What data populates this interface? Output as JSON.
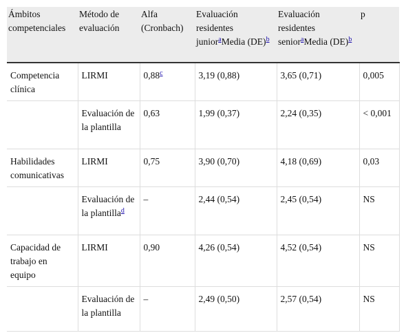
{
  "table": {
    "header": [
      "Ámbitos competenciales",
      "Método de evaluación",
      "Alfa (Cronbach)",
      {
        "parts": [
          {
            "text": "Evaluación residentes junior"
          },
          {
            "sup": "a"
          },
          {
            "text": "Media (DE)"
          },
          {
            "sup": "b"
          }
        ]
      },
      {
        "parts": [
          {
            "text": "Evaluación residentes senior"
          },
          {
            "sup": "a"
          },
          {
            "text": "Media (DE)"
          },
          {
            "sup": "b"
          }
        ]
      },
      "p"
    ],
    "rows": [
      [
        "Competencia clínica",
        "LIRMI",
        {
          "parts": [
            {
              "text": "0,88"
            },
            {
              "sup": "c"
            }
          ]
        },
        "3,19 (0,88)",
        "3,65 (0,71)",
        "0,005"
      ],
      [
        null,
        "Evaluación de la plantilla",
        "0,63",
        "1,99 (0,37)",
        "2,24 (0,35)",
        "< 0,001"
      ],
      [
        "Habilidades comunicativas",
        "LIRMI",
        "0,75",
        "3,90 (0,70)",
        "4,18 (0,69)",
        "0,03"
      ],
      [
        null,
        {
          "parts": [
            {
              "text": "Evaluación de la plantilla"
            },
            {
              "sup": "d"
            }
          ]
        },
        "–",
        "2,44 (0,54)",
        "2,45 (0,54)",
        "NS"
      ],
      [
        "Capacidad de trabajo en equipo",
        "LIRMI",
        "0,90",
        "4,26 (0,54)",
        "4,52 (0,54)",
        "NS"
      ],
      [
        null,
        "Evaluación de la plantilla",
        "–",
        "2,49 (0,50)",
        "2,57 (0,54)",
        "NS"
      ]
    ]
  }
}
